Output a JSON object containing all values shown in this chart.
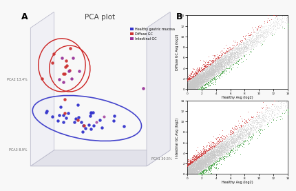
{
  "panel_A_label": "A",
  "panel_B_label": "B",
  "pca_title": "PCA plot",
  "pca1_label": "PCA1 30.5%",
  "pca2_label": "PCA2 13.4%",
  "pca3_label": "PCA3 8.9%",
  "legend_labels": [
    "Healthy gastric mucosa",
    "Diffuse GC",
    "Intestinal GC"
  ],
  "legend_colors": [
    "#3333cc",
    "#cc2222",
    "#993399"
  ],
  "bg_color": "#f8f8f8",
  "top_scatter_ylabel": "Diffuse GC Avg (log2)",
  "bottom_scatter_ylabel": "Intestinal GC Avg (log2)",
  "scatter_xlabel": "Healthy Avg (log2)",
  "scatter_bg": "#ffffff",
  "box_face1": "#e2e2ea",
  "box_face2": "#eaeaf0",
  "box_face3": "#f0f0f5",
  "box_edge": "#bbbbcc"
}
